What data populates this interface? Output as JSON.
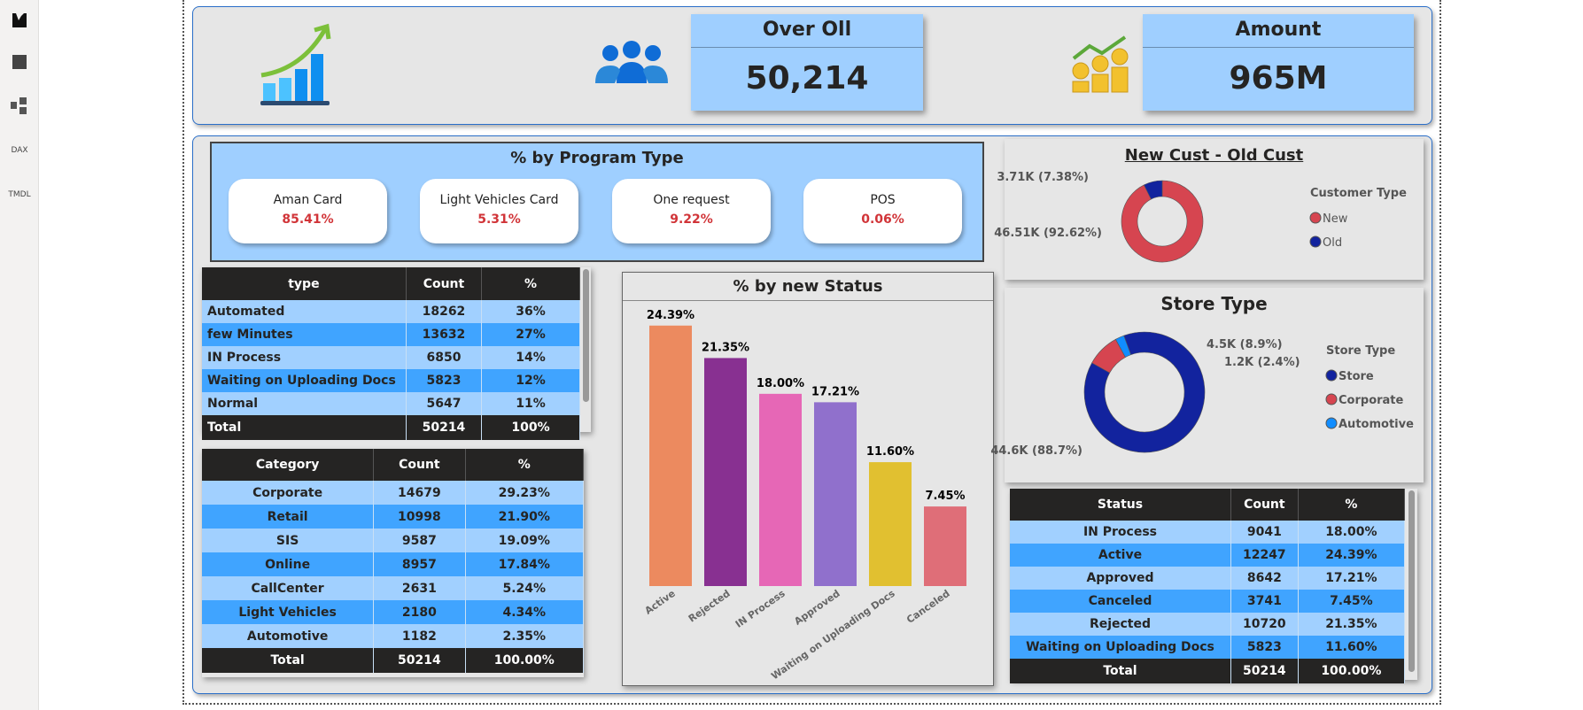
{
  "sidebar": {
    "items": [
      {
        "icon": "report-view-icon"
      },
      {
        "icon": "table-view-icon"
      },
      {
        "icon": "model-view-icon"
      },
      {
        "icon": "dax-query-icon",
        "label": "DAX"
      },
      {
        "icon": "tmdl-view-icon",
        "label": "TMDL"
      }
    ]
  },
  "kpis": {
    "overall": {
      "title": "Over Oll",
      "value": "50,214"
    },
    "amount": {
      "title": "Amount",
      "value": "965M"
    }
  },
  "program": {
    "title": "% by Program Type",
    "cards": [
      {
        "label": "Aman Card",
        "value": "85.41%"
      },
      {
        "label": "Light Vehicles Card",
        "value": "5.31%"
      },
      {
        "label": "One request",
        "value": "9.22%"
      },
      {
        "label": "POS",
        "value": "0.06%"
      }
    ]
  },
  "type_table": {
    "headers": [
      "type",
      "Count",
      "%"
    ],
    "rows": [
      [
        "Automated",
        "18262",
        "36%"
      ],
      [
        "few Minutes",
        "13632",
        "27%"
      ],
      [
        "IN Process",
        "6850",
        "14%"
      ],
      [
        "Waiting on Uploading Docs",
        "5823",
        "12%"
      ],
      [
        "Normal",
        "5647",
        "11%"
      ]
    ],
    "total": [
      "Total",
      "50214",
      "100%"
    ]
  },
  "category_table": {
    "headers": [
      "Category",
      "Count",
      "%"
    ],
    "rows": [
      [
        "Corporate",
        "14679",
        "29.23%"
      ],
      [
        "Retail",
        "10998",
        "21.90%"
      ],
      [
        "SIS",
        "9587",
        "19.09%"
      ],
      [
        "Online",
        "8957",
        "17.84%"
      ],
      [
        "CallCenter",
        "2631",
        "5.24%"
      ],
      [
        "Light Vehicles",
        "2180",
        "4.34%"
      ],
      [
        "Automotive",
        "1182",
        "2.35%"
      ]
    ],
    "total": [
      "Total",
      "50214",
      "100.00%"
    ]
  },
  "status_table": {
    "headers": [
      "Status",
      "Count",
      "%"
    ],
    "rows": [
      [
        "IN Process",
        "9041",
        "18.00%"
      ],
      [
        "Active",
        "12247",
        "24.39%"
      ],
      [
        "Approved",
        "8642",
        "17.21%"
      ],
      [
        "Canceled",
        "3741",
        "7.45%"
      ],
      [
        "Rejected",
        "10720",
        "21.35%"
      ],
      [
        "Waiting on Uploading Docs",
        "5823",
        "11.60%"
      ]
    ],
    "total": [
      "Total",
      "50214",
      "100.00%"
    ]
  },
  "chart_data": [
    {
      "type": "bar",
      "title": "% by new Status",
      "categories": [
        "Active",
        "Rejected",
        "IN Process",
        "Approved",
        "Waiting on Uploading Docs",
        "Canceled"
      ],
      "values": [
        24.39,
        21.35,
        18.0,
        17.21,
        11.6,
        7.45
      ],
      "labels": [
        "24.39%",
        "21.35%",
        "18.00%",
        "17.21%",
        "11.60%",
        "7.45%"
      ],
      "colors": [
        "#ec8a5f",
        "#883091",
        "#e667b6",
        "#9070cc",
        "#e1c030",
        "#df6e78"
      ],
      "grid": false
    },
    {
      "type": "pie",
      "title": "New Cust - Old Cust",
      "legend_title": "Customer Type",
      "categories": [
        "New",
        "Old"
      ],
      "values": [
        46.51,
        3.71
      ],
      "labels": [
        "46.51K (92.62%)",
        "3.71K (7.38%)"
      ],
      "colors": [
        "#d64550",
        "#12239e"
      ],
      "legend": "right"
    },
    {
      "type": "pie",
      "title": "Store Type",
      "legend_title": "Store Type",
      "categories": [
        "Store",
        "Corporate",
        "Automotive"
      ],
      "values": [
        44.6,
        4.5,
        1.2
      ],
      "labels": [
        "44.6K (88.7%)",
        "4.5K (8.9%)",
        "1.2K (2.4%)"
      ],
      "colors": [
        "#12239e",
        "#d64550",
        "#118dff"
      ],
      "legend": "right"
    }
  ]
}
